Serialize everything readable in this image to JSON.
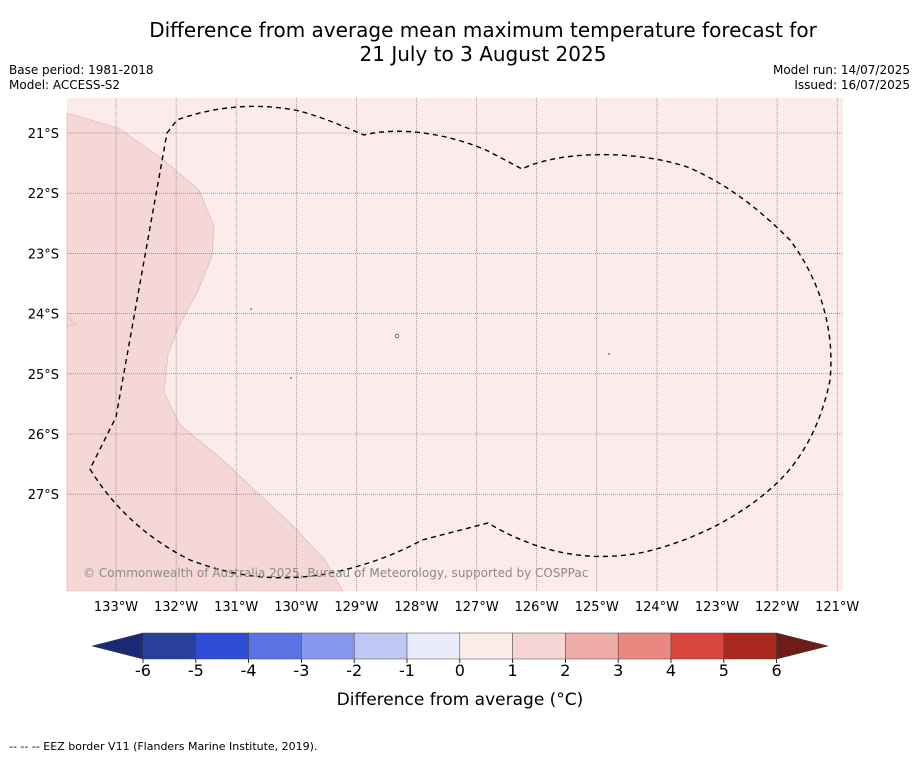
{
  "header": {
    "title_line1": "Difference from average mean maximum temperature forecast for",
    "title_line2": "21 July to 3 August 2025",
    "base_period": "Base period: 1981-2018",
    "model": "Model: ACCESS-S2",
    "model_run": "Model run: 14/07/2025",
    "issued": "Issued: 16/07/2025"
  },
  "map": {
    "lat_labels": [
      "21°S",
      "22°S",
      "23°S",
      "24°S",
      "25°S",
      "26°S",
      "27°S"
    ],
    "lon_labels": [
      "133°W",
      "132°W",
      "131°W",
      "130°W",
      "129°W",
      "128°W",
      "127°W",
      "126°W",
      "125°W",
      "124°W",
      "123°W",
      "122°W",
      "121°W"
    ],
    "copyright": "© Commonwealth of Australia 2025, Bureau of Meteorology, supported by COSPPac",
    "colors": {
      "background_band": "#fbebea",
      "band_2_3": "#f5d7d6",
      "gridline": "#7a5f6a"
    }
  },
  "colorbar": {
    "ticks": [
      "-6",
      "-5",
      "-4",
      "-3",
      "-2",
      "-1",
      "0",
      "1",
      "2",
      "3",
      "4",
      "5",
      "6"
    ],
    "colors": [
      "#283f9e",
      "#2f4ed6",
      "#5b72e4",
      "#8797ec",
      "#c0c7f4",
      "#e8ebfa",
      "#fcece9",
      "#f5d6d5",
      "#edaca8",
      "#e98880",
      "#d9463d",
      "#a8281f"
    ],
    "low_extend_color": "#1b2a74",
    "high_extend_color": "#6e1d16",
    "label": "Difference from average (°C)"
  },
  "legend": {
    "eez_text": "-- -- -- EEZ border V11 (Flanders Marine Institute, 2019)."
  }
}
